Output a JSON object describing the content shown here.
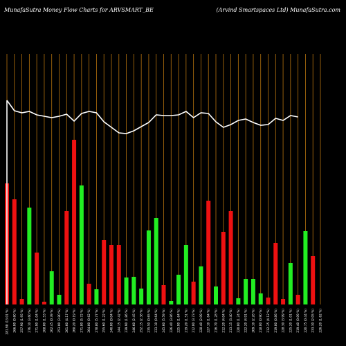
{
  "header": {
    "left": "MunafaSutra  Money Flow  Charts for ARVSMART_BE",
    "right": "(Arvind Smartspaces Ltd) MunafaSutra.com"
  },
  "colors": {
    "background": "#000000",
    "up": "#22ee22",
    "down": "#ee1111",
    "grid": "#b8740e",
    "line": "#ffffff",
    "label": "#ffffff"
  },
  "chart_data": {
    "type": "bar",
    "title": "MunafaSutra  Money Flow  Charts for ARVSMART_BE",
    "categories": [
      "281.90 (13.01 %)",
      "266.00 (0.60 %)",
      "257.90 (1.95 %)",
      "276.10 (3.60 %)",
      "271.90 (1.04 %)",
      "268.00 (1.53 %)",
      "262.45 (0.39 %)",
      "253.00 (3.80 %)",
      "261.60 (4.17 %)",
      "260.20 (0.19 %)",
      "271.80 (5.72 %)",
      "264.00 (0.62 %)",
      "278.80 (5.77 %)",
      "255.60 (1.22 %)",
      "240.00 (0.04 %)",
      "244.15 (2.42 %)",
      "239.90 (1.86 %)",
      "246.60 (2.45 %)",
      "252.15 (2.38 %)",
      "235.50 (0.65 %)",
      "233.10 (0.64 %)",
      "245.60 (5.59 %)",
      "226.40 (3.86 %)",
      "225.90 (1.64 %)",
      "219.20 (1.51 %)",
      "212.00 (3.73 %)",
      "228.40 (2.09 %)",
      "227.10 (1.64 %)",
      "216.70 (1.28 %)",
      "212.20 (4.04 %)",
      "213.15 (3.40 %)",
      "220.00 (1.24 %)",
      "222.20 (4.91 %)",
      "209.10 (2.28 %)",
      "218.00 (0.90 %)",
      "212.35 (4.12 %)",
      "219.00 (0.86 %)",
      "228.30 (3.99 %)",
      "225.20 (1.01 %)",
      "219.40 (0.09 %)",
      "220.75 (0.44 %)",
      "233.30 (2.05 %)",
      "226.20 (1.62 %)"
    ],
    "values": [
      175,
      152,
      8,
      140,
      75,
      4,
      48,
      14,
      135,
      238,
      172,
      30,
      22,
      93,
      86,
      86,
      39,
      40,
      23,
      107,
      125,
      28,
      5,
      43,
      86,
      33,
      55,
      150,
      26,
      105,
      135,
      9,
      37,
      37,
      16,
      10,
      89,
      8,
      60,
      14,
      106,
      70,
      0
    ],
    "direction": [
      "down",
      "down",
      "down",
      "up",
      "down",
      "down",
      "up",
      "up",
      "down",
      "down",
      "up",
      "down",
      "up",
      "down",
      "down",
      "down",
      "up",
      "up",
      "up",
      "up",
      "up",
      "down",
      "up",
      "up",
      "up",
      "down",
      "up",
      "down",
      "up",
      "down",
      "down",
      "up",
      "up",
      "up",
      "up",
      "down",
      "down",
      "down",
      "up",
      "down",
      "up",
      "down",
      "up"
    ],
    "line_values": [
      295,
      280,
      277,
      279,
      274,
      272,
      270,
      272,
      275,
      265,
      276,
      279,
      277,
      264,
      256,
      248,
      247,
      251,
      257,
      263,
      274,
      273,
      273,
      274,
      279,
      270,
      277,
      276,
      264,
      256,
      260,
      266,
      268,
      263,
      259,
      260,
      269,
      266,
      273,
      271
    ],
    "line_start": 5,
    "ylim": [
      0,
      280
    ],
    "grid": "vertical"
  }
}
